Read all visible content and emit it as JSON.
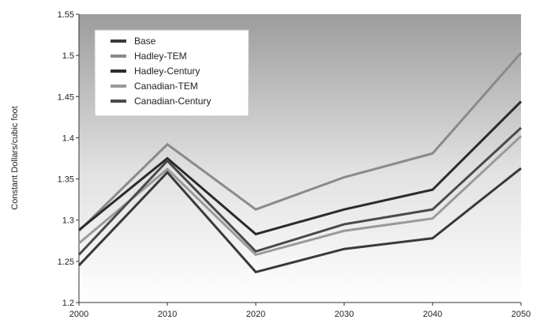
{
  "chart_data": {
    "type": "line",
    "ylabel": "Constant Dollars/cubic foot",
    "xlabel": "",
    "title": "",
    "x": [
      2000,
      2010,
      2020,
      2030,
      2040,
      2050
    ],
    "x_tick_labels": [
      "2000",
      "2010",
      "2020",
      "2030",
      "2040",
      "2050"
    ],
    "ylim": [
      1.2,
      1.55
    ],
    "y_tick_labels": [
      "1.2",
      "1.25",
      "1.3",
      "1.35",
      "1.4",
      "1.45",
      "1.5",
      "1.55"
    ],
    "y_ticks": [
      1.2,
      1.25,
      1.3,
      1.35,
      1.4,
      1.45,
      1.5,
      1.55
    ],
    "grid": false,
    "legend_position": "top-left",
    "series": [
      {
        "name": "Base",
        "color": "#3a3a3a",
        "values": [
          1.245,
          1.358,
          1.237,
          1.265,
          1.278,
          1.363
        ]
      },
      {
        "name": "Hadley-TEM",
        "color": "#8a8a8a",
        "values": [
          1.287,
          1.392,
          1.313,
          1.352,
          1.381,
          1.503
        ]
      },
      {
        "name": "Hadley-Century",
        "color": "#2b2b2b",
        "values": [
          1.288,
          1.375,
          1.283,
          1.313,
          1.337,
          1.444
        ]
      },
      {
        "name": "Canadian-TEM",
        "color": "#9a9a9a",
        "values": [
          1.272,
          1.362,
          1.258,
          1.287,
          1.302,
          1.402
        ]
      },
      {
        "name": "Canadian-Century",
        "color": "#4a4a4a",
        "values": [
          1.258,
          1.372,
          1.262,
          1.295,
          1.313,
          1.412
        ]
      }
    ]
  }
}
